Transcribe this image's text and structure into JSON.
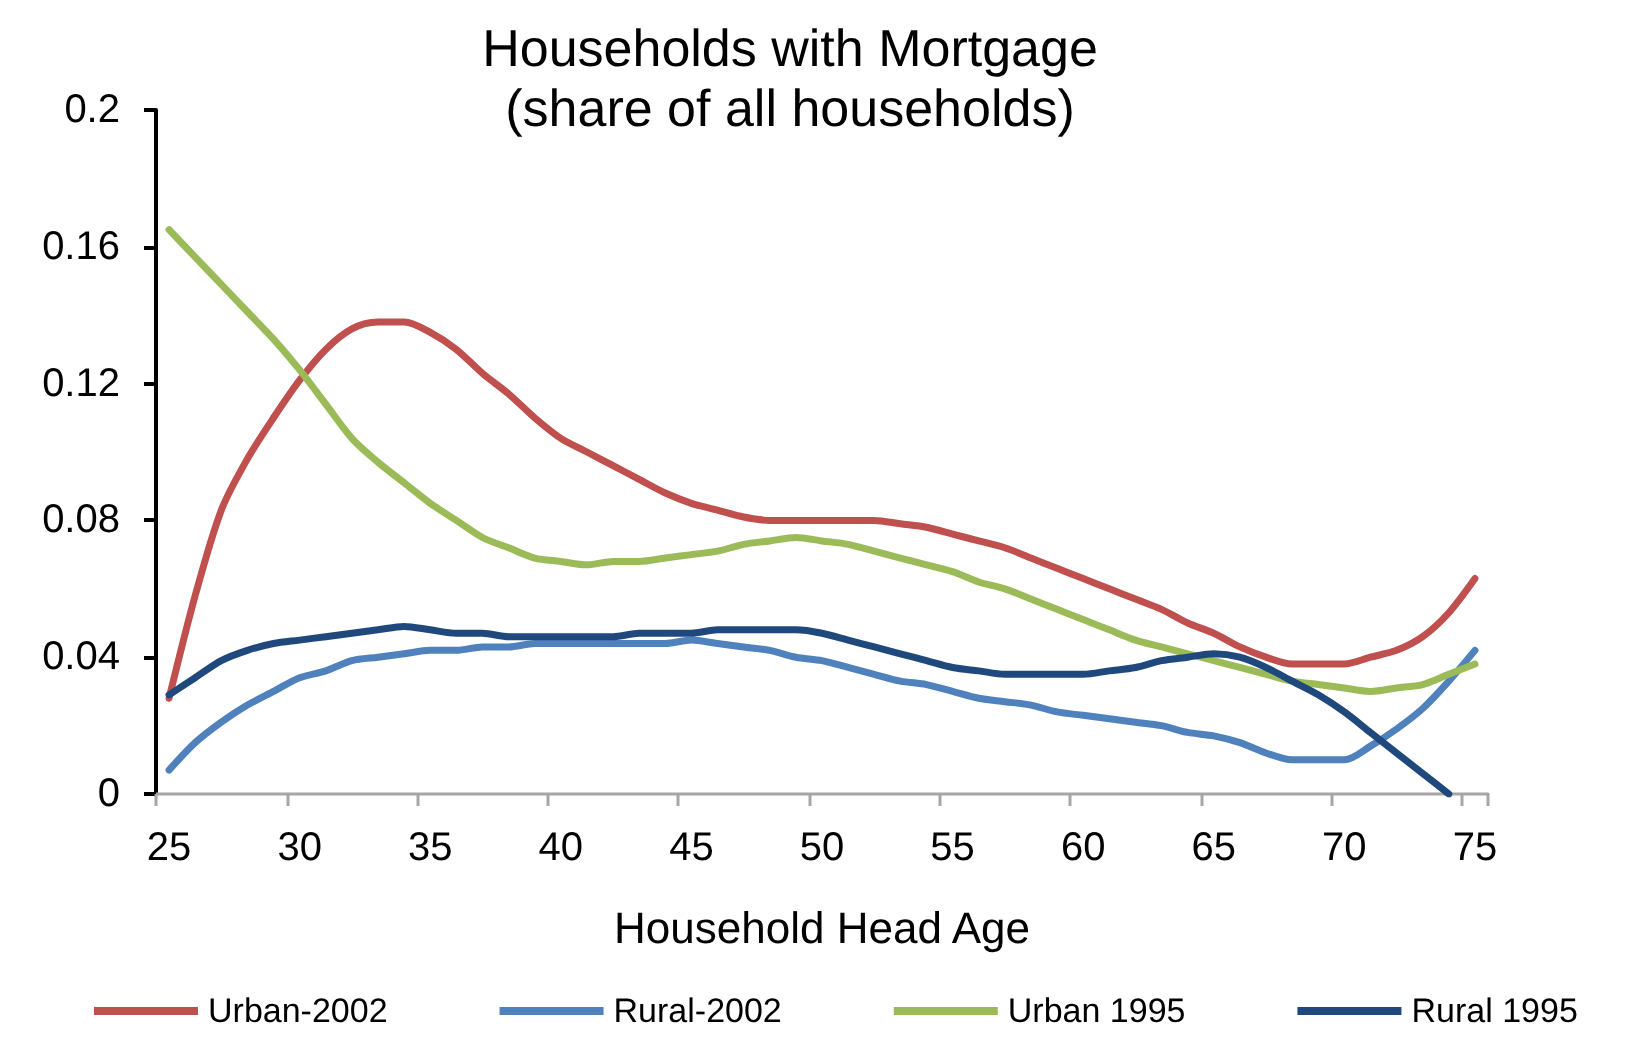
{
  "chart_data": {
    "type": "line",
    "title": "Households with Mortgage",
    "subtitle": "(share of all households)",
    "xlabel": "Household Head Age",
    "categories": [
      "25",
      null,
      null,
      null,
      null,
      "30",
      null,
      null,
      null,
      null,
      "35",
      null,
      null,
      null,
      null,
      "40",
      null,
      null,
      null,
      null,
      "45",
      null,
      null,
      null,
      null,
      "50",
      null,
      null,
      null,
      null,
      "55",
      null,
      null,
      null,
      null,
      "60",
      null,
      null,
      null,
      null,
      "65",
      null,
      null,
      null,
      null,
      "70",
      null,
      null,
      null,
      null,
      "75"
    ],
    "series": [
      {
        "name": "Urban-2002",
        "color": "#c0504d",
        "values": [
          0.028,
          0.058,
          0.083,
          0.098,
          0.11,
          0.121,
          0.13,
          0.136,
          0.138,
          0.138,
          0.135,
          0.13,
          0.123,
          0.117,
          0.11,
          0.104,
          0.1,
          0.096,
          0.092,
          0.088,
          0.085,
          0.083,
          0.081,
          0.08,
          0.08,
          0.08,
          0.08,
          0.08,
          0.079,
          0.078,
          0.076,
          0.074,
          0.072,
          0.069,
          0.066,
          0.063,
          0.06,
          0.057,
          0.054,
          0.05,
          0.047,
          0.043,
          0.04,
          0.038,
          0.038,
          0.038,
          0.04,
          0.042,
          0.046,
          0.053,
          0.063
        ]
      },
      {
        "name": "Rural-2002",
        "color": "#4f81bd",
        "values": [
          0.007,
          0.015,
          0.021,
          0.026,
          0.03,
          0.034,
          0.036,
          0.039,
          0.04,
          0.041,
          0.042,
          0.042,
          0.043,
          0.043,
          0.044,
          0.044,
          0.044,
          0.044,
          0.044,
          0.044,
          0.045,
          0.044,
          0.043,
          0.042,
          0.04,
          0.039,
          0.037,
          0.035,
          0.033,
          0.032,
          0.03,
          0.028,
          0.027,
          0.026,
          0.024,
          0.023,
          0.022,
          0.021,
          0.02,
          0.018,
          0.017,
          0.015,
          0.012,
          0.01,
          0.01,
          0.01,
          0.014,
          0.019,
          0.025,
          0.033,
          0.042
        ]
      },
      {
        "name": "Urban 1995",
        "color": "#9bbb59",
        "values": [
          0.165,
          0.157,
          0.149,
          0.141,
          0.133,
          0.124,
          0.114,
          0.104,
          0.097,
          0.091,
          0.085,
          0.08,
          0.075,
          0.072,
          0.069,
          0.068,
          0.067,
          0.068,
          0.068,
          0.069,
          0.07,
          0.071,
          0.073,
          0.074,
          0.075,
          0.074,
          0.073,
          0.071,
          0.069,
          0.067,
          0.065,
          0.062,
          0.06,
          0.057,
          0.054,
          0.051,
          0.048,
          0.045,
          0.043,
          0.041,
          0.039,
          0.037,
          0.035,
          0.033,
          0.032,
          0.031,
          0.03,
          0.031,
          0.032,
          0.035,
          0.038
        ]
      },
      {
        "name": "Rural 1995",
        "color": "#1f497d",
        "values": [
          0.029,
          0.034,
          0.039,
          0.042,
          0.044,
          0.045,
          0.046,
          0.047,
          0.048,
          0.049,
          0.048,
          0.047,
          0.047,
          0.046,
          0.046,
          0.046,
          0.046,
          0.046,
          0.047,
          0.047,
          0.047,
          0.048,
          0.048,
          0.048,
          0.048,
          0.047,
          0.045,
          0.043,
          0.041,
          0.039,
          0.037,
          0.036,
          0.035,
          0.035,
          0.035,
          0.035,
          0.036,
          0.037,
          0.039,
          0.04,
          0.041,
          0.04,
          0.037,
          0.033,
          0.029,
          0.024,
          0.018,
          0.012,
          0.006,
          0.0,
          null
        ]
      }
    ],
    "ylim": [
      0,
      0.2
    ],
    "yticks": [
      0,
      0.04,
      0.08,
      0.12,
      0.16,
      0.2
    ],
    "legend": "bottom",
    "marker": "none",
    "line_style": "solid"
  }
}
